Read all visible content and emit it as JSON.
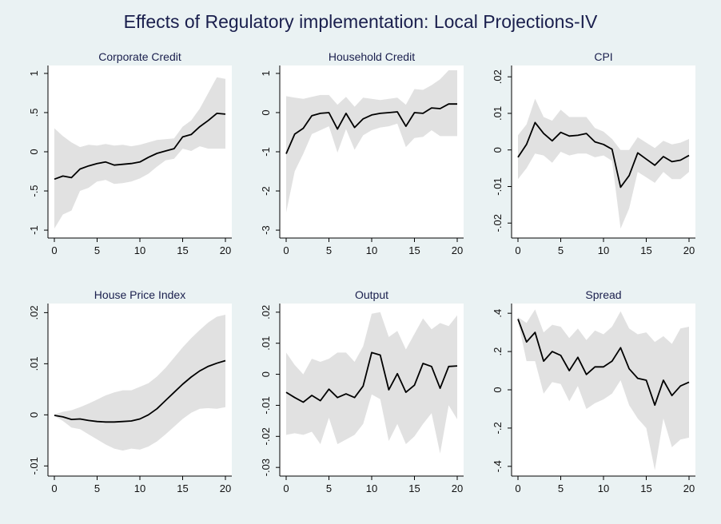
{
  "title": "Effects of Regulatory implementation: Local Projections-IV",
  "chart_data": [
    {
      "type": "line",
      "title": "Corporate Credit",
      "x": [
        0,
        1,
        2,
        3,
        4,
        5,
        6,
        7,
        8,
        9,
        10,
        11,
        12,
        13,
        14,
        15,
        16,
        17,
        18,
        19,
        20
      ],
      "xticks": [
        0,
        5,
        10,
        15,
        20
      ],
      "yticks": [
        -1,
        -0.5,
        0,
        0.5,
        1
      ],
      "ytick_labels": [
        "-1",
        "-.5",
        "0",
        ".5",
        "1"
      ],
      "ylim": [
        -1.05,
        1.05
      ],
      "series": [
        {
          "values": [
            -0.35,
            -0.31,
            -0.33,
            -0.22,
            -0.18,
            -0.15,
            -0.13,
            -0.17,
            -0.16,
            -0.15,
            -0.13,
            -0.07,
            -0.02,
            0.01,
            0.04,
            0.19,
            0.22,
            0.32,
            0.4,
            0.49,
            0.48
          ]
        }
      ],
      "ci_lower": [
        -0.98,
        -0.8,
        -0.75,
        -0.5,
        -0.46,
        -0.38,
        -0.36,
        -0.41,
        -0.4,
        -0.38,
        -0.34,
        -0.28,
        -0.19,
        -0.11,
        -0.09,
        0.04,
        0.01,
        0.07,
        0.04,
        0.04,
        0.04
      ],
      "ci_upper": [
        0.3,
        0.2,
        0.12,
        0.06,
        0.09,
        0.08,
        0.1,
        0.08,
        0.09,
        0.07,
        0.09,
        0.12,
        0.15,
        0.16,
        0.17,
        0.32,
        0.4,
        0.55,
        0.75,
        0.95,
        0.93
      ]
    },
    {
      "type": "line",
      "title": "Household Credit",
      "x": [
        0,
        1,
        2,
        3,
        4,
        5,
        6,
        7,
        8,
        9,
        10,
        11,
        12,
        13,
        14,
        15,
        16,
        17,
        18,
        19,
        20
      ],
      "xticks": [
        0,
        5,
        10,
        15,
        20
      ],
      "yticks": [
        -3,
        -2,
        -1,
        0,
        1
      ],
      "ytick_labels": [
        "-3",
        "-2",
        "-1",
        "0",
        "1"
      ],
      "ylim": [
        -3.1,
        1.1
      ],
      "series": [
        {
          "values": [
            -1.05,
            -0.55,
            -0.4,
            -0.08,
            -0.02,
            0,
            -0.42,
            -0.02,
            -0.38,
            -0.16,
            -0.06,
            -0.02,
            0,
            0.02,
            -0.35,
            0,
            -0.02,
            0.12,
            0.1,
            0.22,
            0.22
          ]
        }
      ],
      "ci_lower": [
        -2.55,
        -1.5,
        -1.05,
        -0.55,
        -0.45,
        -0.35,
        -1.02,
        -0.42,
        -0.95,
        -0.58,
        -0.45,
        -0.38,
        -0.35,
        -0.28,
        -0.88,
        -0.65,
        -0.62,
        -0.45,
        -0.6,
        -0.6,
        -0.6
      ],
      "ci_upper": [
        0.42,
        0.38,
        0.35,
        0.4,
        0.45,
        0.45,
        0.2,
        0.4,
        0.15,
        0.38,
        0.35,
        0.32,
        0.35,
        0.38,
        0.2,
        0.6,
        0.58,
        0.7,
        0.85,
        1.08,
        1.08
      ]
    },
    {
      "type": "line",
      "title": "CPI",
      "x": [
        0,
        1,
        2,
        3,
        4,
        5,
        6,
        7,
        8,
        9,
        10,
        11,
        12,
        13,
        14,
        15,
        16,
        17,
        18,
        19,
        20
      ],
      "xticks": [
        0,
        5,
        10,
        15,
        20
      ],
      "yticks": [
        -0.02,
        -0.01,
        0,
        0.01,
        0.02
      ],
      "ytick_labels": [
        "-.02",
        "-.01",
        "0",
        ".01",
        ".02"
      ],
      "ylim": [
        -0.023,
        0.022
      ],
      "series": [
        {
          "values": [
            -0.002,
            0.0015,
            0.0075,
            0.0045,
            0.0025,
            0.0048,
            0.0038,
            0.004,
            0.0045,
            0.0022,
            0.0015,
            0.0002,
            -0.0102,
            -0.007,
            -0.0008,
            -0.0025,
            -0.0042,
            -0.0018,
            -0.0032,
            -0.0028,
            -0.0015
          ]
        }
      ],
      "ci_lower": [
        -0.008,
        -0.005,
        -0.001,
        -0.0015,
        -0.0035,
        -0.0005,
        -0.0015,
        -0.001,
        -0.001,
        -0.002,
        -0.0015,
        -0.003,
        -0.0215,
        -0.016,
        -0.006,
        -0.0075,
        -0.009,
        -0.006,
        -0.008,
        -0.008,
        -0.006
      ],
      "ci_upper": [
        0.004,
        0.007,
        0.014,
        0.009,
        0.008,
        0.011,
        0.009,
        0.009,
        0.009,
        0.006,
        0.005,
        0.003,
        0,
        0,
        0.0035,
        0.002,
        0.0005,
        0.0025,
        0.0015,
        0.002,
        0.003
      ]
    },
    {
      "type": "line",
      "title": "House Price Index",
      "x": [
        0,
        1,
        2,
        3,
        4,
        5,
        6,
        7,
        8,
        9,
        10,
        11,
        12,
        13,
        14,
        15,
        16,
        17,
        18,
        19,
        20
      ],
      "xticks": [
        0,
        5,
        10,
        15,
        20
      ],
      "yticks": [
        -0.01,
        0,
        0.01,
        0.02
      ],
      "ytick_labels": [
        "-.01",
        "0",
        ".01",
        ".02"
      ],
      "ylim": [
        -0.0112,
        0.021
      ],
      "series": [
        {
          "values": [
            -0.0001,
            -0.0004,
            -0.0009,
            -0.0008,
            -0.0011,
            -0.0013,
            -0.0014,
            -0.0014,
            -0.0013,
            -0.0012,
            -0.0008,
            0,
            0.0012,
            0.0028,
            0.0044,
            0.006,
            0.0074,
            0.0086,
            0.0095,
            0.0101,
            0.0106
          ]
        }
      ],
      "ci_lower": [
        -0.0002,
        -0.0012,
        -0.0025,
        -0.0028,
        -0.0038,
        -0.0048,
        -0.0058,
        -0.0066,
        -0.007,
        -0.0066,
        -0.0068,
        -0.0062,
        -0.0052,
        -0.0038,
        -0.0023,
        -0.0008,
        0.0004,
        0.0012,
        0.0013,
        0.0012,
        0.0015
      ],
      "ci_upper": [
        0.0001,
        0.0006,
        0.0009,
        0.0015,
        0.0022,
        0.003,
        0.0038,
        0.0044,
        0.0048,
        0.0048,
        0.0055,
        0.0062,
        0.0075,
        0.0092,
        0.0112,
        0.0132,
        0.015,
        0.0166,
        0.0181,
        0.0192,
        0.0196
      ]
    },
    {
      "type": "line",
      "title": "Output",
      "x": [
        0,
        1,
        2,
        3,
        4,
        5,
        6,
        7,
        8,
        9,
        10,
        11,
        12,
        13,
        14,
        15,
        16,
        17,
        18,
        19,
        20
      ],
      "xticks": [
        0,
        5,
        10,
        15,
        20
      ],
      "yticks": [
        -0.03,
        -0.02,
        -0.01,
        0,
        0.01,
        0.02
      ],
      "ytick_labels": [
        "-.03",
        "-.02",
        "-.01",
        "0",
        ".01",
        ".02"
      ],
      "ylim": [
        -0.0315,
        0.0215
      ],
      "series": [
        {
          "values": [
            -0.0058,
            -0.0075,
            -0.009,
            -0.0068,
            -0.0085,
            -0.0048,
            -0.0075,
            -0.0063,
            -0.0075,
            -0.0038,
            0.007,
            0.0062,
            -0.005,
            0.0002,
            -0.0058,
            -0.0035,
            0.0035,
            0.0025,
            -0.0045,
            0.0025,
            0.0027
          ]
        }
      ],
      "ci_lower": [
        -0.0195,
        -0.019,
        -0.0195,
        -0.0185,
        -0.0225,
        -0.014,
        -0.0225,
        -0.021,
        -0.0195,
        -0.016,
        -0.0065,
        -0.008,
        -0.0215,
        -0.016,
        -0.0225,
        -0.02,
        -0.016,
        -0.0125,
        -0.0255,
        -0.01,
        -0.0145
      ],
      "ci_upper": [
        0.007,
        0.003,
        0,
        0.005,
        0.004,
        0.005,
        0.007,
        0.007,
        0.004,
        0.009,
        0.0195,
        0.02,
        0.012,
        0.014,
        0.008,
        0.013,
        0.018,
        0.0145,
        0.0165,
        0.0155,
        0.019
      ]
    },
    {
      "type": "line",
      "title": "Spread",
      "x": [
        0,
        1,
        2,
        3,
        4,
        5,
        6,
        7,
        8,
        9,
        10,
        11,
        12,
        13,
        14,
        15,
        16,
        17,
        18,
        19,
        20
      ],
      "xticks": [
        0,
        5,
        10,
        15,
        20
      ],
      "yticks": [
        -0.4,
        -0.2,
        0,
        0.2,
        0.4
      ],
      "ytick_labels": [
        "-.4",
        "-.2",
        "0",
        ".2",
        ".4"
      ],
      "ylim": [
        -0.43,
        0.43
      ],
      "series": [
        {
          "values": [
            0.37,
            0.25,
            0.3,
            0.15,
            0.2,
            0.18,
            0.1,
            0.17,
            0.08,
            0.12,
            0.12,
            0.15,
            0.22,
            0.11,
            0.06,
            0.05,
            -0.08,
            0.05,
            -0.03,
            0.02,
            0.04
          ]
        }
      ],
      "ci_lower": [
        0.36,
        0.15,
        0.15,
        -0.02,
        0.04,
        0.03,
        -0.06,
        0.02,
        -0.1,
        -0.07,
        -0.05,
        -0.02,
        0.05,
        -0.08,
        -0.15,
        -0.2,
        -0.42,
        -0.15,
        -0.3,
        -0.26,
        -0.25
      ],
      "ci_upper": [
        0.38,
        0.35,
        0.42,
        0.3,
        0.34,
        0.33,
        0.27,
        0.32,
        0.26,
        0.31,
        0.29,
        0.33,
        0.41,
        0.32,
        0.29,
        0.3,
        0.25,
        0.28,
        0.24,
        0.32,
        0.33
      ]
    }
  ]
}
